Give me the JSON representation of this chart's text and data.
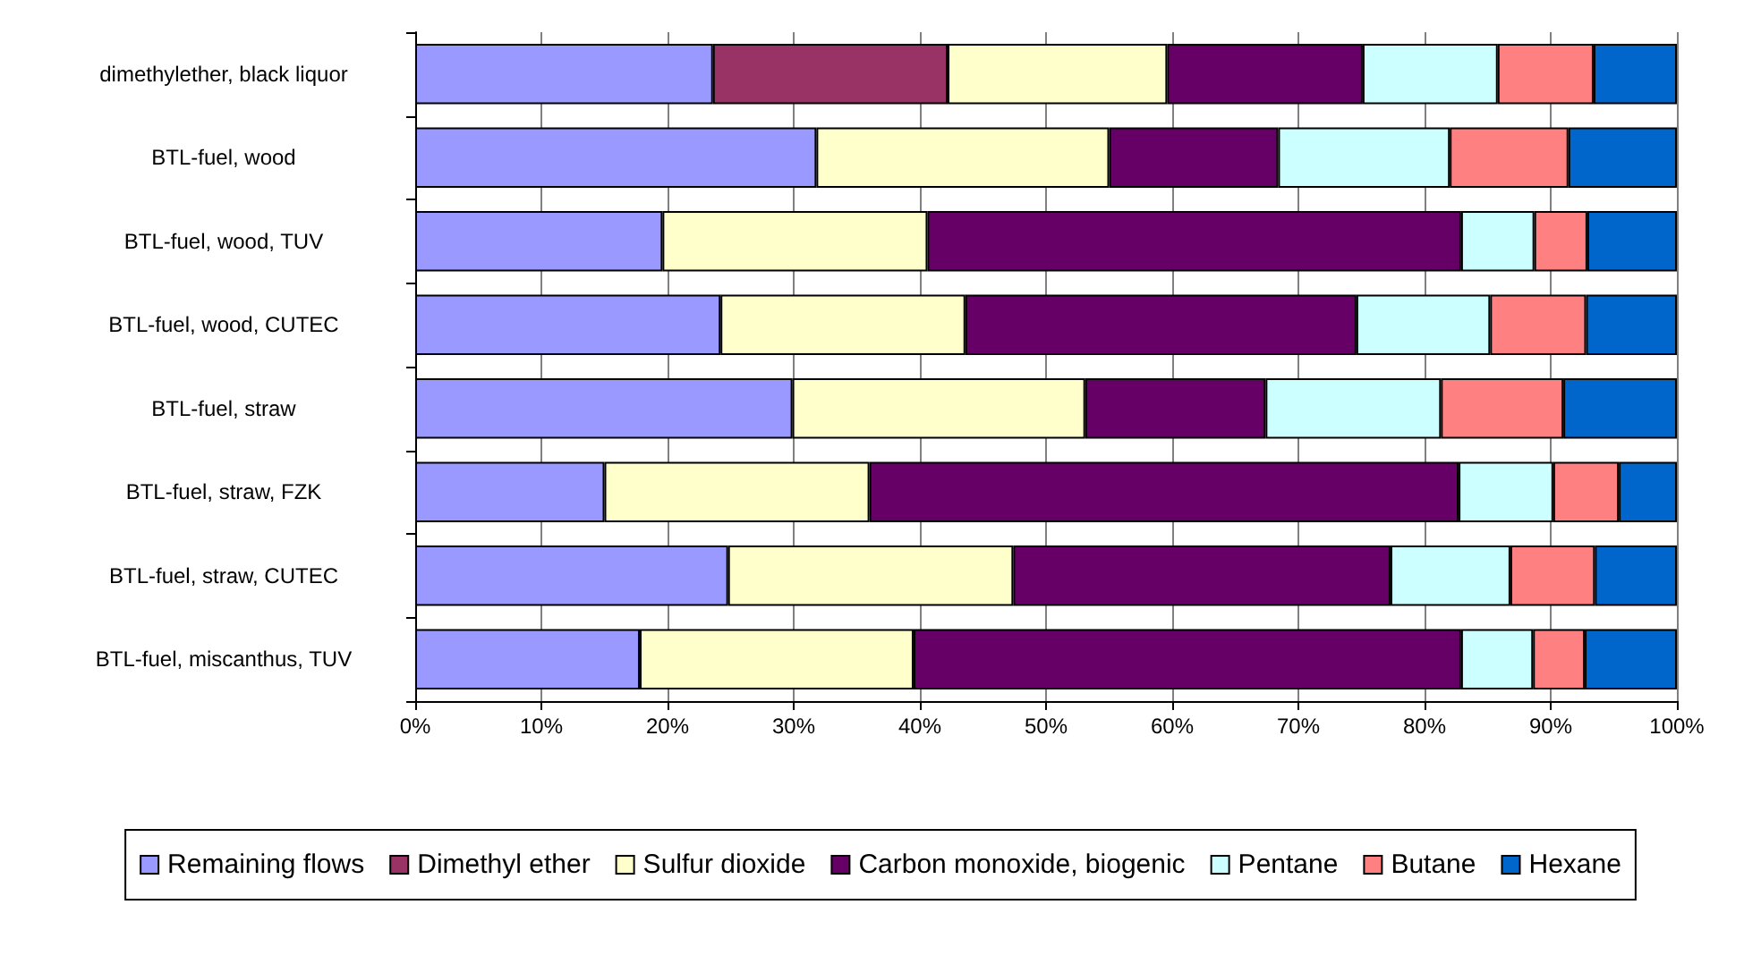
{
  "chart_data": {
    "type": "bar",
    "orientation": "horizontal",
    "stacked": true,
    "categories": [
      "dimethylether, black liquor",
      "BTL-fuel, wood",
      "BTL-fuel, wood, TUV",
      "BTL-fuel, wood, CUTEC",
      "BTL-fuel, straw",
      "BTL-fuel, straw, FZK",
      "BTL-fuel, straw, CUTEC",
      "BTL-fuel, miscanthus, TUV"
    ],
    "series": [
      {
        "name": "Remaining flows",
        "color": "#9999ff",
        "values": [
          23.6,
          31.8,
          19.6,
          24.2,
          29.9,
          15.0,
          24.8,
          17.8
        ]
      },
      {
        "name": "Dimethyl ether",
        "color": "#993366",
        "values": [
          18.6,
          null,
          null,
          null,
          null,
          null,
          null,
          null
        ]
      },
      {
        "name": "Sulfur dioxide",
        "color": "#ffffcc",
        "values": [
          17.4,
          23.2,
          21.0,
          19.4,
          23.2,
          21.0,
          22.6,
          21.7
        ]
      },
      {
        "name": "Carbon monoxide, biogenic",
        "color": "#660066",
        "values": [
          15.5,
          13.4,
          42.3,
          31.0,
          14.3,
          46.7,
          29.9,
          43.4
        ]
      },
      {
        "name": "Pentane",
        "color": "#ccffff",
        "values": [
          10.7,
          13.6,
          5.8,
          10.6,
          13.9,
          7.5,
          9.5,
          5.7
        ]
      },
      {
        "name": "Butane",
        "color": "#ff8080",
        "values": [
          7.6,
          9.4,
          4.2,
          7.6,
          9.7,
          5.2,
          6.7,
          4.1
        ]
      },
      {
        "name": "Hexane",
        "color": "#0066cc",
        "values": [
          6.6,
          8.6,
          7.1,
          7.2,
          9.0,
          4.6,
          6.5,
          7.3
        ]
      }
    ],
    "xlim": [
      0,
      100
    ],
    "xticks": [
      {
        "value": 0,
        "label": "0%"
      },
      {
        "value": 10,
        "label": "10%"
      },
      {
        "value": 20,
        "label": "20%"
      },
      {
        "value": 30,
        "label": "30%"
      },
      {
        "value": 40,
        "label": "40%"
      },
      {
        "value": 50,
        "label": "50%"
      },
      {
        "value": 60,
        "label": "60%"
      },
      {
        "value": 70,
        "label": "70%"
      },
      {
        "value": 80,
        "label": "80%"
      },
      {
        "value": 90,
        "label": "90%"
      },
      {
        "value": 100,
        "label": "100%"
      }
    ],
    "grid": "x",
    "legend": "bottom"
  }
}
